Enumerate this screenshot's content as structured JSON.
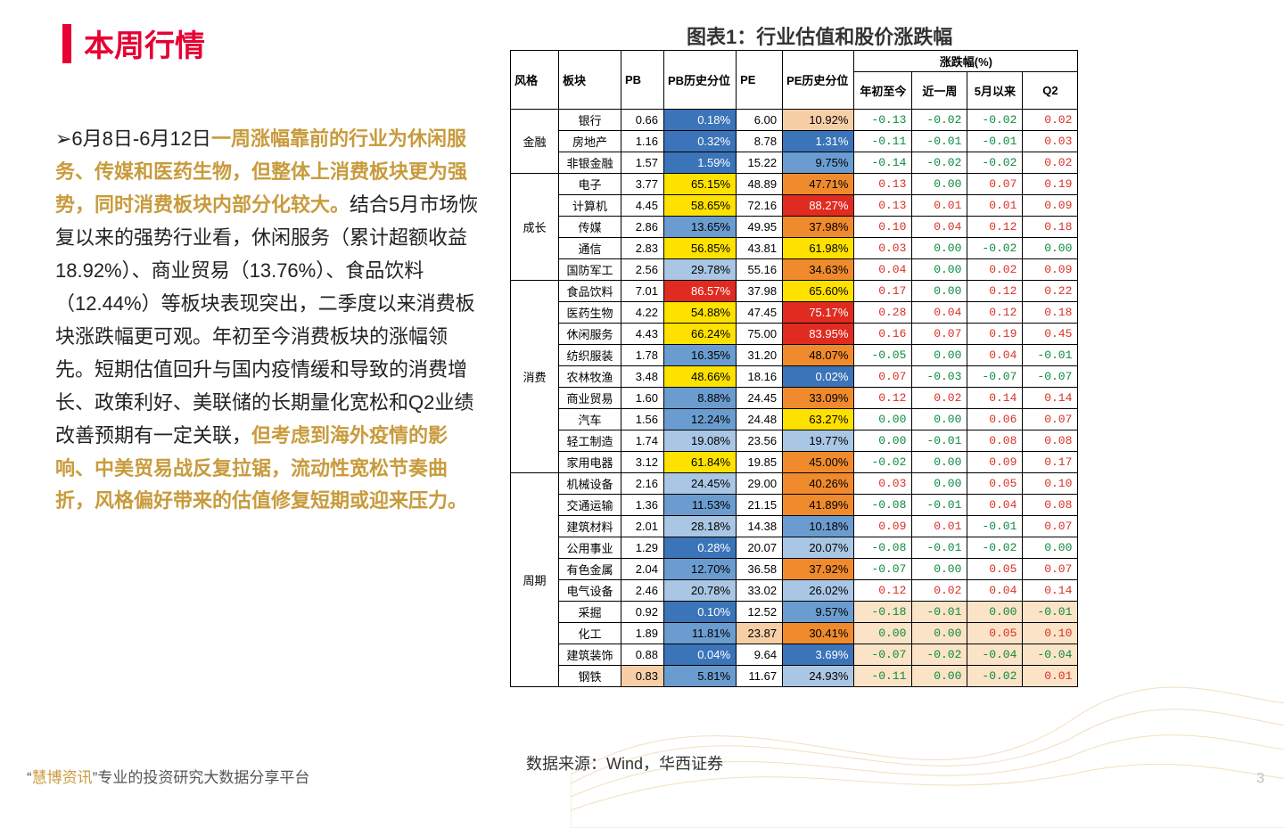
{
  "title": "本周行情",
  "chart_title": "图表1：行业估值和股价涨跌幅",
  "source": "数据来源：Wind，华西证券",
  "footer_brand": "慧博资讯",
  "footer_rest": "专业的投资研究大数据分享平台",
  "page_number": "3",
  "colors": {
    "accent": "#e60033",
    "highlight_text": "#c89b3c",
    "pos": "#d93025",
    "neg": "#0b8a3e",
    "heat": {
      "red": "#e02b20",
      "orange": "#ef8a2d",
      "yellow": "#ffe100",
      "blue_dark": "#3b74b8",
      "blue_mid": "#6a9ccf",
      "blue_light": "#a9c6e4",
      "blue_pale": "#d3e1f1",
      "peach": "#f7cfa7"
    },
    "shade": "#fbe3c7"
  },
  "paragraph": {
    "parts": [
      {
        "t": "➢6月8日-6月12日",
        "hl": false,
        "arrow": true
      },
      {
        "t": "一周涨幅靠前的行业为休闲服务、传媒和医药生物，但整体上消费板块更为强势，同时消费板块内部分化较大。",
        "hl": true
      },
      {
        "t": "结合5月市场恢复以来的强势行业看，休闲服务（累计超额收益18.92%）、商业贸易（13.76%）、食品饮料（12.44%）等板块表现突出，二季度以来消费板块涨跌幅更可观。年初至今消费板块的涨幅领先。短期估值回升与国内疫情缓和导致的消费增长、政策利好、美联储的长期量化宽松和Q2业绩改善预期有一定关联，",
        "hl": false
      },
      {
        "t": "但考虑到海外疫情的影响、中美贸易战反复拉锯，流动性宽松节奏曲折，风格偏好带来的估值修复短期或迎来压力。",
        "hl": true
      }
    ]
  },
  "table": {
    "header_row1": [
      "风格",
      "板块",
      "PB",
      "PB历史分位",
      "PE",
      "PE历史分位",
      "涨跌幅(%)"
    ],
    "header_row2": [
      "年初至今",
      "近一周",
      "5月以来",
      "Q2"
    ],
    "groups": [
      {
        "style": "金融",
        "rows": [
          {
            "sector": "银行",
            "pb": "0.66",
            "pb_pct": "0.18%",
            "pb_heat": "blue_dark",
            "pe": "6.00",
            "pe_pct": "10.92%",
            "pe_heat": "peach",
            "chg": [
              "-0.13",
              "-0.02",
              "-0.02",
              "0.02"
            ]
          },
          {
            "sector": "房地产",
            "pb": "1.16",
            "pb_pct": "0.32%",
            "pb_heat": "blue_dark",
            "pe": "8.78",
            "pe_pct": "1.31%",
            "pe_heat": "blue_dark",
            "chg": [
              "-0.11",
              "-0.01",
              "-0.01",
              "0.03"
            ]
          },
          {
            "sector": "非银金融",
            "pb": "1.57",
            "pb_pct": "1.59%",
            "pb_heat": "blue_dark",
            "pe": "15.22",
            "pe_pct": "9.75%",
            "pe_heat": "blue_mid",
            "chg": [
              "-0.14",
              "-0.02",
              "-0.02",
              "0.02"
            ]
          }
        ]
      },
      {
        "style": "成长",
        "rows": [
          {
            "sector": "电子",
            "pb": "3.77",
            "pb_pct": "65.15%",
            "pb_heat": "yellow",
            "pe": "48.89",
            "pe_pct": "47.71%",
            "pe_heat": "orange",
            "chg": [
              "0.13",
              "0.00",
              "0.07",
              "0.19"
            ]
          },
          {
            "sector": "计算机",
            "pb": "4.45",
            "pb_pct": "58.65%",
            "pb_heat": "yellow",
            "pe": "72.16",
            "pe_pct": "88.27%",
            "pe_heat": "red",
            "chg": [
              "0.13",
              "0.01",
              "0.01",
              "0.09"
            ]
          },
          {
            "sector": "传媒",
            "pb": "2.86",
            "pb_pct": "13.65%",
            "pb_heat": "blue_mid",
            "pe": "49.95",
            "pe_pct": "37.98%",
            "pe_heat": "orange",
            "chg": [
              "0.10",
              "0.04",
              "0.12",
              "0.18"
            ]
          },
          {
            "sector": "通信",
            "pb": "2.83",
            "pb_pct": "56.85%",
            "pb_heat": "yellow",
            "pe": "43.81",
            "pe_pct": "61.98%",
            "pe_heat": "yellow",
            "chg": [
              "0.03",
              "0.00",
              "-0.02",
              "0.00"
            ]
          },
          {
            "sector": "国防军工",
            "pb": "2.56",
            "pb_pct": "29.78%",
            "pb_heat": "blue_light",
            "pe": "55.16",
            "pe_pct": "34.63%",
            "pe_heat": "orange",
            "chg": [
              "0.04",
              "0.00",
              "0.02",
              "0.09"
            ]
          }
        ]
      },
      {
        "style": "消费",
        "rows": [
          {
            "sector": "食品饮料",
            "pb": "7.01",
            "pb_pct": "86.57%",
            "pb_heat": "red",
            "pe": "37.98",
            "pe_pct": "65.60%",
            "pe_heat": "yellow",
            "chg": [
              "0.17",
              "0.00",
              "0.12",
              "0.22"
            ]
          },
          {
            "sector": "医药生物",
            "pb": "4.22",
            "pb_pct": "54.88%",
            "pb_heat": "yellow",
            "pe": "47.45",
            "pe_pct": "75.17%",
            "pe_heat": "red",
            "chg": [
              "0.28",
              "0.04",
              "0.12",
              "0.18"
            ]
          },
          {
            "sector": "休闲服务",
            "pb": "4.43",
            "pb_pct": "66.24%",
            "pb_heat": "yellow",
            "pe": "75.00",
            "pe_pct": "83.95%",
            "pe_heat": "red",
            "chg": [
              "0.16",
              "0.07",
              "0.19",
              "0.45"
            ]
          },
          {
            "sector": "纺织服装",
            "pb": "1.78",
            "pb_pct": "16.35%",
            "pb_heat": "blue_mid",
            "pe": "31.20",
            "pe_pct": "48.07%",
            "pe_heat": "orange",
            "chg": [
              "-0.05",
              "0.00",
              "0.04",
              "-0.01"
            ]
          },
          {
            "sector": "农林牧渔",
            "pb": "3.48",
            "pb_pct": "48.66%",
            "pb_heat": "yellow",
            "pe": "18.16",
            "pe_pct": "0.02%",
            "pe_heat": "blue_dark",
            "chg": [
              "0.07",
              "-0.03",
              "-0.07",
              "-0.07"
            ]
          },
          {
            "sector": "商业贸易",
            "pb": "1.60",
            "pb_pct": "8.88%",
            "pb_heat": "blue_mid",
            "pe": "24.45",
            "pe_pct": "33.09%",
            "pe_heat": "orange",
            "chg": [
              "0.12",
              "0.02",
              "0.14",
              "0.14"
            ]
          },
          {
            "sector": "汽车",
            "pb": "1.56",
            "pb_pct": "12.24%",
            "pb_heat": "blue_mid",
            "pe": "24.48",
            "pe_pct": "63.27%",
            "pe_heat": "yellow",
            "chg": [
              "0.00",
              "0.00",
              "0.06",
              "0.07"
            ]
          },
          {
            "sector": "轻工制造",
            "pb": "1.74",
            "pb_pct": "19.08%",
            "pb_heat": "blue_light",
            "pe": "23.56",
            "pe_pct": "19.77%",
            "pe_heat": "blue_light",
            "chg": [
              "0.00",
              "-0.01",
              "0.08",
              "0.08"
            ]
          },
          {
            "sector": "家用电器",
            "pb": "3.12",
            "pb_pct": "61.84%",
            "pb_heat": "yellow",
            "pe": "19.85",
            "pe_pct": "45.00%",
            "pe_heat": "orange",
            "chg": [
              "-0.02",
              "0.00",
              "0.09",
              "0.17"
            ]
          }
        ]
      },
      {
        "style": "周期",
        "rows": [
          {
            "sector": "机械设备",
            "pb": "2.16",
            "pb_pct": "24.45%",
            "pb_heat": "blue_light",
            "pe": "29.00",
            "pe_pct": "40.26%",
            "pe_heat": "orange",
            "chg": [
              "0.03",
              "0.00",
              "0.05",
              "0.10"
            ]
          },
          {
            "sector": "交通运输",
            "pb": "1.36",
            "pb_pct": "11.53%",
            "pb_heat": "blue_mid",
            "pe": "21.15",
            "pe_pct": "41.89%",
            "pe_heat": "orange",
            "chg": [
              "-0.08",
              "-0.01",
              "0.04",
              "0.08"
            ]
          },
          {
            "sector": "建筑材料",
            "pb": "2.01",
            "pb_pct": "28.18%",
            "pb_heat": "blue_light",
            "pe": "14.38",
            "pe_pct": "10.18%",
            "pe_heat": "blue_mid",
            "chg": [
              "0.09",
              "0.01",
              "-0.01",
              "0.07"
            ]
          },
          {
            "sector": "公用事业",
            "pb": "1.29",
            "pb_pct": "0.28%",
            "pb_heat": "blue_dark",
            "pe": "20.07",
            "pe_pct": "20.07%",
            "pe_heat": "blue_light",
            "chg": [
              "-0.08",
              "-0.01",
              "-0.02",
              "0.00"
            ]
          },
          {
            "sector": "有色金属",
            "pb": "2.04",
            "pb_pct": "12.70%",
            "pb_heat": "blue_mid",
            "pe": "36.58",
            "pe_pct": "37.92%",
            "pe_heat": "orange",
            "chg": [
              "-0.07",
              "0.00",
              "0.05",
              "0.07"
            ]
          },
          {
            "sector": "电气设备",
            "pb": "2.46",
            "pb_pct": "20.78%",
            "pb_heat": "blue_light",
            "pe": "33.02",
            "pe_pct": "26.02%",
            "pe_heat": "blue_light",
            "chg": [
              "0.12",
              "0.02",
              "0.04",
              "0.14"
            ]
          },
          {
            "sector": "采掘",
            "pb": "0.92",
            "pb_pct": "0.10%",
            "pb_heat": "blue_dark",
            "pe": "12.52",
            "pe_pct": "9.57%",
            "pe_heat": "blue_mid",
            "chg": [
              "-0.18",
              "-0.01",
              "0.00",
              "-0.01"
            ],
            "shade": true
          },
          {
            "sector": "化工",
            "pb": "1.89",
            "pb_pct": "11.81%",
            "pb_heat": "blue_mid",
            "pe": "23.87",
            "pe_heat_pe": "peach",
            "pe_pct": "30.41%",
            "pe_heat": "orange",
            "chg": [
              "0.00",
              "0.00",
              "0.05",
              "0.10"
            ],
            "shade": true
          },
          {
            "sector": "建筑装饰",
            "pb": "0.88",
            "pb_pct": "0.04%",
            "pb_heat": "blue_dark",
            "pe": "9.64",
            "pe_pct": "3.69%",
            "pe_heat": "blue_dark",
            "chg": [
              "-0.07",
              "-0.02",
              "-0.04",
              "-0.04"
            ],
            "shade": true
          },
          {
            "sector": "钢铁",
            "pb": "0.83",
            "pb_heat_pb": "peach",
            "pb_pct": "5.81%",
            "pb_heat": "blue_mid",
            "pe": "11.67",
            "pe_pct": "24.93%",
            "pe_heat": "blue_light",
            "chg": [
              "-0.11",
              "0.00",
              "-0.02",
              "0.01"
            ],
            "shade": true
          }
        ]
      }
    ]
  }
}
